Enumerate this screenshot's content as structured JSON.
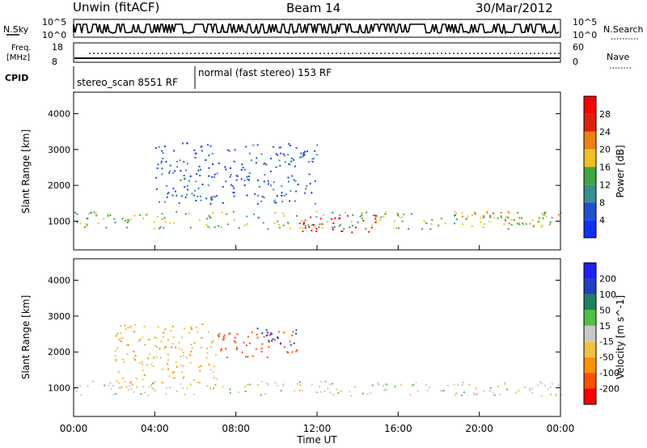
{
  "header": {
    "title_left": "Unwin (fitACF)",
    "title_center": "Beam 14",
    "title_right": "30/Mar/2012"
  },
  "top_panel": {
    "nsky_label": "N.Sky",
    "nsky_ticks": [
      "10^5",
      "10^0"
    ],
    "nsearch_label": "N.Search",
    "nsearch_ticks": [
      "10^5",
      "10^0"
    ],
    "freq_label_line1": "Freq.",
    "freq_label_line2": "[MHz]",
    "freq_ticks": [
      "18",
      "8"
    ],
    "nave_label": "Nave",
    "nave_ticks": [
      "60",
      "0"
    ],
    "cpid_label": "CPID",
    "cpid_segments": [
      {
        "label": "stereo_scan 8551 RF",
        "start_hour": 0,
        "end_hour": 6
      },
      {
        "label": "normal (fast stereo) 153 RF",
        "start_hour": 6,
        "end_hour": 24
      }
    ]
  },
  "power_panel": {
    "ylabel": "Slant Range [km]",
    "yticks": [
      "1000",
      "2000",
      "3000",
      "4000"
    ],
    "colorbar_label": "Power [dB]",
    "colorbar_ticks": [
      "4",
      "8",
      "12",
      "16",
      "20",
      "24",
      "28"
    ],
    "colorbar_colors": [
      "#1030ff",
      "#2050d0",
      "#3a8f8f",
      "#3fa840",
      "#f0c020",
      "#f08010",
      "#e02010",
      "#ff0000"
    ]
  },
  "velocity_panel": {
    "ylabel": "Slant Range [km]",
    "yticks": [
      "1000",
      "2000",
      "3000",
      "4000"
    ],
    "colorbar_label": "Velocity [m s^-1]",
    "colorbar_ticks": [
      "-200",
      "-100",
      "-50",
      "-15",
      "15",
      "50",
      "100",
      "200"
    ],
    "colorbar_colors": [
      "#ff0000",
      "#ff5000",
      "#ff9000",
      "#f0c040",
      "#c8c8c8",
      "#50c040",
      "#208060",
      "#2040c0",
      "#2020ff"
    ]
  },
  "xaxis": {
    "label": "Time UT",
    "ticks": [
      "00:00",
      "04:00",
      "08:00",
      "12:00",
      "16:00",
      "20:00",
      "00:00"
    ]
  },
  "chart_data": [
    {
      "type": "heatmap",
      "title": "Unwin (fitACF) Beam 14 30/Mar/2012",
      "xlabel": "Time UT",
      "ylabel": "Slant Range [km]",
      "xlim_hours": [
        0,
        24
      ],
      "ylim": [
        200,
        4600
      ],
      "colorbar": {
        "label": "Power [dB]",
        "range": [
          0,
          30
        ]
      },
      "regions": [
        {
          "name": "near-range band",
          "t_start": 0,
          "t_end": 24,
          "range_min": 800,
          "range_max": 1300,
          "power": 14
        },
        {
          "name": "strong echoes",
          "t_start": 11,
          "t_end": 15,
          "range_min": 700,
          "range_max": 1200,
          "power": 27
        },
        {
          "name": "F-region patches",
          "t_start": 4,
          "t_end": 12,
          "range_min": 1500,
          "range_max": 3200,
          "power": 6
        },
        {
          "name": "evening band",
          "t_start": 19,
          "t_end": 24,
          "range_min": 900,
          "range_max": 1300,
          "power": 18
        }
      ]
    },
    {
      "type": "heatmap",
      "xlabel": "Time UT",
      "ylabel": "Slant Range [km]",
      "xlim_hours": [
        0,
        24
      ],
      "ylim": [
        200,
        4600
      ],
      "colorbar": {
        "label": "Velocity [m s^-1]",
        "range": [
          -250,
          250
        ]
      },
      "regions": [
        {
          "name": "ground scatter",
          "t_start": 0,
          "t_end": 24,
          "range_min": 800,
          "range_max": 1200,
          "velocity": 0
        },
        {
          "name": "negative flow",
          "t_start": 7,
          "t_end": 11,
          "range_min": 1800,
          "range_max": 2600,
          "velocity": -180
        },
        {
          "name": "positive flow",
          "t_start": 9,
          "t_end": 11,
          "range_min": 2200,
          "range_max": 2700,
          "velocity": 150
        },
        {
          "name": "weak negative",
          "t_start": 2,
          "t_end": 7,
          "range_min": 1000,
          "range_max": 2800,
          "velocity": -40
        }
      ]
    }
  ]
}
